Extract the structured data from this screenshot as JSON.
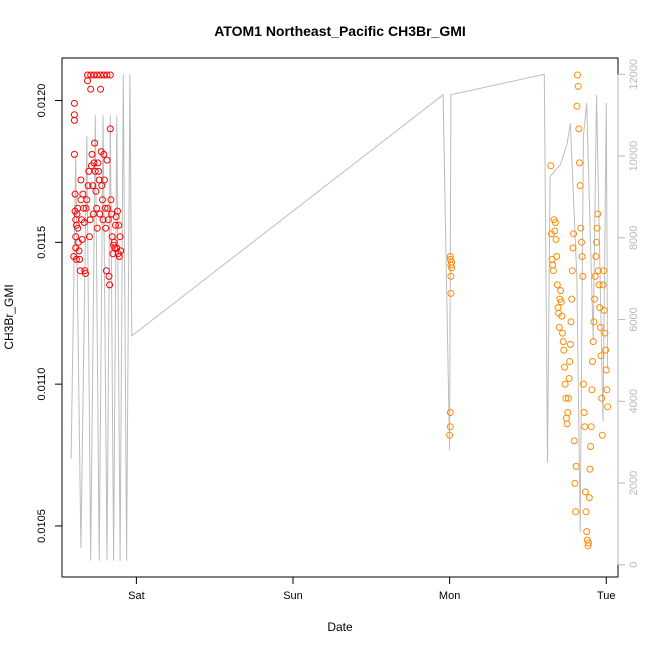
{
  "chart_data": {
    "type": "scatter",
    "title": "ATOM1 Northeast_Pacific CH3Br_GMI",
    "xlabel": "Date",
    "ylabel": "CH3Br_GMI",
    "x_ticks": [
      "Sat",
      "Sun",
      "Mon",
      "Tue"
    ],
    "x_tick_hours": [
      0,
      24,
      48,
      72
    ],
    "xlim_hours": [
      -11.4,
      73.8
    ],
    "ylim": [
      0.01032,
      0.01215
    ],
    "y_ticks": [
      0.0105,
      0.011,
      0.0115,
      0.012
    ],
    "y_tick_labels": [
      "0.0105",
      "0.0110",
      "0.0115",
      "0.0120"
    ],
    "y2_ticks": [
      0,
      2000,
      4000,
      6000,
      8000,
      10000,
      12000
    ],
    "y2_tick_labels": [
      "0",
      "2000",
      "4000",
      "6000",
      "8000",
      "10000",
      "12000"
    ],
    "y2lim": [
      -300,
      12400
    ],
    "grid": false,
    "legend": "none",
    "colors": {
      "series1": "#ff0000",
      "series2": "#ff8c00",
      "altitude": "#bdbdbd"
    },
    "series": [
      {
        "color": "#ff0000",
        "points": [
          [
            -9.5,
            0.01199
          ],
          [
            -9.5,
            0.01195
          ],
          [
            -9.5,
            0.01193
          ],
          [
            -9.5,
            0.01181
          ],
          [
            -9.4,
            0.01167
          ],
          [
            -9.4,
            0.01161
          ],
          [
            -9.3,
            0.01158
          ],
          [
            -9.3,
            0.01152
          ],
          [
            -9.3,
            0.01148
          ],
          [
            -9.2,
            0.01144
          ],
          [
            -9.1,
            0.0116
          ],
          [
            -9.0,
            0.01162
          ],
          [
            -9.0,
            0.01155
          ],
          [
            -8.9,
            0.0115
          ],
          [
            -8.8,
            0.01147
          ],
          [
            -8.7,
            0.01144
          ],
          [
            -8.6,
            0.0114
          ],
          [
            -8.5,
            0.01165
          ],
          [
            -8.5,
            0.01172
          ],
          [
            -8.4,
            0.01158
          ],
          [
            -8.3,
            0.01151
          ],
          [
            -8.2,
            0.01167
          ],
          [
            -8.1,
            0.01162
          ],
          [
            -8.0,
            0.01157
          ],
          [
            -7.9,
            0.0114
          ],
          [
            -7.8,
            0.01139
          ],
          [
            -7.7,
            0.01162
          ],
          [
            -7.6,
            0.01165
          ],
          [
            -7.5,
            0.01209
          ],
          [
            -7.5,
            0.01207
          ],
          [
            -7.4,
            0.0117
          ],
          [
            -7.3,
            0.01175
          ],
          [
            -7.2,
            0.01152
          ],
          [
            -7.1,
            0.01158
          ],
          [
            -7.0,
            0.01209
          ],
          [
            -7.0,
            0.01204
          ],
          [
            -6.9,
            0.01177
          ],
          [
            -6.8,
            0.01181
          ],
          [
            -6.7,
            0.0117
          ],
          [
            -6.6,
            0.0116
          ],
          [
            -6.5,
            0.01209
          ],
          [
            -6.5,
            0.01178
          ],
          [
            -6.4,
            0.01185
          ],
          [
            -6.3,
            0.01175
          ],
          [
            -6.2,
            0.01168
          ],
          [
            -6.1,
            0.01162
          ],
          [
            -6.0,
            0.01155
          ],
          [
            -6.0,
            0.01209
          ],
          [
            -5.9,
            0.01178
          ],
          [
            -5.8,
            0.01175
          ],
          [
            -5.7,
            0.01172
          ],
          [
            -5.6,
            0.0116
          ],
          [
            -5.5,
            0.01209
          ],
          [
            -5.5,
            0.01204
          ],
          [
            -5.4,
            0.01182
          ],
          [
            -5.3,
            0.0117
          ],
          [
            -5.2,
            0.01165
          ],
          [
            -5.1,
            0.01158
          ],
          [
            -5.0,
            0.01209
          ],
          [
            -5.0,
            0.01181
          ],
          [
            -4.9,
            0.01172
          ],
          [
            -4.8,
            0.01162
          ],
          [
            -4.7,
            0.01155
          ],
          [
            -4.6,
            0.0114
          ],
          [
            -4.5,
            0.01209
          ],
          [
            -4.5,
            0.01179
          ],
          [
            -4.4,
            0.01162
          ],
          [
            -4.3,
            0.01158
          ],
          [
            -4.2,
            0.01138
          ],
          [
            -4.1,
            0.01135
          ],
          [
            -4.0,
            0.01209
          ],
          [
            -4.0,
            0.0119
          ],
          [
            -3.9,
            0.01165
          ],
          [
            -3.8,
            0.0116
          ],
          [
            -3.7,
            0.01152
          ],
          [
            -3.6,
            0.01146
          ],
          [
            -3.5,
            0.01149
          ],
          [
            -3.4,
            0.0115
          ],
          [
            -3.3,
            0.01148
          ],
          [
            -3.2,
            0.01156
          ],
          [
            -3.1,
            0.01159
          ],
          [
            -3.0,
            0.01148
          ],
          [
            -2.9,
            0.01161
          ],
          [
            -2.8,
            0.01146
          ],
          [
            -2.7,
            0.01156
          ],
          [
            -2.6,
            0.01145
          ],
          [
            -2.5,
            0.01152
          ],
          [
            -2.4,
            0.01147
          ],
          [
            -9.6,
            0.01145
          ],
          [
            -9.2,
            0.01156
          ]
        ]
      },
      {
        "color": "#ff8c00",
        "points": [
          [
            48.1,
            0.01145
          ],
          [
            48.1,
            0.01144
          ],
          [
            48.2,
            0.01142
          ],
          [
            48.2,
            0.01138
          ],
          [
            48.2,
            0.01132
          ],
          [
            48.3,
            0.01143
          ],
          [
            48.3,
            0.01141
          ],
          [
            48.1,
            0.0109
          ],
          [
            48.1,
            0.01085
          ],
          [
            48.0,
            0.01082
          ],
          [
            63.5,
            0.01177
          ],
          [
            63.6,
            0.01153
          ],
          [
            63.7,
            0.01144
          ],
          [
            63.8,
            0.01142
          ],
          [
            63.9,
            0.0114
          ],
          [
            64.0,
            0.01158
          ],
          [
            64.1,
            0.01154
          ],
          [
            64.2,
            0.01157
          ],
          [
            64.3,
            0.01151
          ],
          [
            64.4,
            0.01145
          ],
          [
            64.5,
            0.01135
          ],
          [
            64.6,
            0.01127
          ],
          [
            64.7,
            0.01125
          ],
          [
            64.8,
            0.0112
          ],
          [
            64.9,
            0.0113
          ],
          [
            65.0,
            0.01133
          ],
          [
            65.1,
            0.01129
          ],
          [
            65.2,
            0.01124
          ],
          [
            65.3,
            0.01118
          ],
          [
            65.4,
            0.01115
          ],
          [
            65.5,
            0.01112
          ],
          [
            65.6,
            0.01106
          ],
          [
            65.7,
            0.011
          ],
          [
            65.8,
            0.01095
          ],
          [
            65.9,
            0.01088
          ],
          [
            66.0,
            0.01086
          ],
          [
            66.1,
            0.0109
          ],
          [
            66.2,
            0.01095
          ],
          [
            66.3,
            0.01102
          ],
          [
            66.4,
            0.01108
          ],
          [
            66.5,
            0.01114
          ],
          [
            66.6,
            0.01122
          ],
          [
            66.7,
            0.0113
          ],
          [
            66.8,
            0.0114
          ],
          [
            66.9,
            0.01148
          ],
          [
            67.0,
            0.01153
          ],
          [
            67.1,
            0.0108
          ],
          [
            67.2,
            0.01065
          ],
          [
            67.3,
            0.01055
          ],
          [
            67.4,
            0.01071
          ],
          [
            67.5,
            0.01198
          ],
          [
            67.6,
            0.01209
          ],
          [
            67.7,
            0.01205
          ],
          [
            67.8,
            0.0119
          ],
          [
            67.9,
            0.01178
          ],
          [
            68.0,
            0.0117
          ],
          [
            68.1,
            0.01155
          ],
          [
            68.2,
            0.0115
          ],
          [
            68.3,
            0.01145
          ],
          [
            68.4,
            0.01138
          ],
          [
            68.5,
            0.011
          ],
          [
            68.6,
            0.0109
          ],
          [
            68.7,
            0.01085
          ],
          [
            68.8,
            0.01062
          ],
          [
            68.9,
            0.01055
          ],
          [
            69.0,
            0.01048
          ],
          [
            69.1,
            0.01045
          ],
          [
            69.2,
            0.01043
          ],
          [
            69.3,
            0.01044
          ],
          [
            69.4,
            0.0106
          ],
          [
            69.5,
            0.0107
          ],
          [
            69.6,
            0.01078
          ],
          [
            69.7,
            0.01085
          ],
          [
            69.8,
            0.01098
          ],
          [
            69.9,
            0.01108
          ],
          [
            70.0,
            0.01115
          ],
          [
            70.1,
            0.01122
          ],
          [
            70.2,
            0.0113
          ],
          [
            70.3,
            0.01138
          ],
          [
            70.4,
            0.01145
          ],
          [
            70.5,
            0.0115
          ],
          [
            70.6,
            0.01155
          ],
          [
            70.7,
            0.0116
          ],
          [
            70.8,
            0.0114
          ],
          [
            70.9,
            0.01135
          ],
          [
            71.0,
            0.01127
          ],
          [
            71.1,
            0.0112
          ],
          [
            71.2,
            0.0111
          ],
          [
            71.3,
            0.01095
          ],
          [
            71.4,
            0.01082
          ],
          [
            71.5,
            0.01135
          ],
          [
            71.6,
            0.0114
          ],
          [
            71.7,
            0.01126
          ],
          [
            71.8,
            0.01118
          ],
          [
            71.9,
            0.01112
          ],
          [
            72.0,
            0.01105
          ],
          [
            72.1,
            0.01098
          ],
          [
            72.2,
            0.01092
          ]
        ]
      }
    ],
    "altitude_line": {
      "color": "#bdbdbd",
      "points": [
        [
          -10.0,
          2600
        ],
        [
          -9.3,
          10000
        ],
        [
          -8.5,
          400
        ],
        [
          -7.6,
          10500
        ],
        [
          -7.0,
          100
        ],
        [
          -6.3,
          11000
        ],
        [
          -5.7,
          100
        ],
        [
          -5.1,
          11000
        ],
        [
          -4.5,
          100
        ],
        [
          -4.0,
          11000
        ],
        [
          -3.5,
          100
        ],
        [
          -3.0,
          11000
        ],
        [
          -2.5,
          100
        ],
        [
          -2.0,
          12000
        ],
        [
          -1.5,
          100
        ],
        [
          -1.0,
          12000
        ],
        [
          -0.7,
          5600
        ],
        [
          47.0,
          11500
        ],
        [
          48.0,
          2800
        ],
        [
          48.2,
          11500
        ],
        [
          62.5,
          12000
        ],
        [
          63.0,
          2500
        ],
        [
          63.4,
          9500
        ],
        [
          65.0,
          9800
        ],
        [
          66.0,
          10300
        ],
        [
          66.5,
          10800
        ],
        [
          67.5,
          7000
        ],
        [
          68.0,
          800
        ],
        [
          68.5,
          10500
        ],
        [
          69.0,
          11300
        ],
        [
          70.0,
          5500
        ],
        [
          70.5,
          11500
        ],
        [
          71.5,
          3500
        ],
        [
          72.0,
          11300
        ],
        [
          72.2,
          4800
        ]
      ]
    }
  }
}
